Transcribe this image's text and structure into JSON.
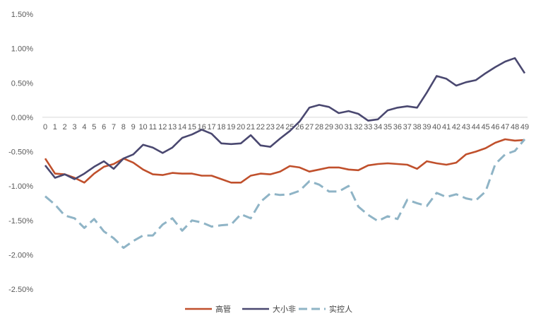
{
  "chart_data": {
    "type": "line",
    "title": "",
    "xlabel": "",
    "ylabel": "",
    "ylim": [
      -2.5,
      1.5
    ],
    "y_ticks": [
      "1.50%",
      "1.00%",
      "0.50%",
      "0.00%",
      "-0.50%",
      "-1.00%",
      "-1.50%",
      "-2.00%",
      "-2.50%"
    ],
    "y_tick_values": [
      1.5,
      1.0,
      0.5,
      0.0,
      -0.5,
      -1.0,
      -1.5,
      -2.0,
      -2.5
    ],
    "y_unit": "%",
    "grid": false,
    "legend_position": "bottom",
    "x": [
      "0",
      "1",
      "2",
      "3",
      "4",
      "5",
      "6",
      "7",
      "8",
      "9",
      "10",
      "11",
      "12",
      "13",
      "14",
      "15",
      "16",
      "17",
      "18",
      "19",
      "20",
      "21",
      "22",
      "23",
      "24",
      "25",
      "26",
      "27",
      "28",
      "29",
      "30",
      "31",
      "32",
      "33",
      "34",
      "35",
      "36",
      "37",
      "38",
      "39",
      "40",
      "41",
      "42",
      "43",
      "44",
      "45",
      "46",
      "47",
      "48",
      "49"
    ],
    "series": [
      {
        "name": "高管",
        "color": "#C0502C",
        "dash": "solid",
        "values": [
          -0.6,
          -0.82,
          -0.83,
          -0.88,
          -0.95,
          -0.82,
          -0.72,
          -0.68,
          -0.6,
          -0.66,
          -0.76,
          -0.83,
          -0.84,
          -0.81,
          -0.82,
          -0.82,
          -0.85,
          -0.85,
          -0.9,
          -0.95,
          -0.95,
          -0.85,
          -0.82,
          -0.83,
          -0.79,
          -0.71,
          -0.73,
          -0.79,
          -0.76,
          -0.73,
          -0.73,
          -0.76,
          -0.77,
          -0.7,
          -0.68,
          -0.67,
          -0.68,
          -0.69,
          -0.75,
          -0.64,
          -0.67,
          -0.69,
          -0.66,
          -0.54,
          -0.5,
          -0.45,
          -0.37,
          -0.32,
          -0.34,
          -0.33
        ]
      },
      {
        "name": "大小非",
        "color": "#4A4870",
        "dash": "solid",
        "values": [
          -0.7,
          -0.88,
          -0.83,
          -0.9,
          -0.82,
          -0.72,
          -0.64,
          -0.75,
          -0.6,
          -0.54,
          -0.4,
          -0.44,
          -0.52,
          -0.44,
          -0.3,
          -0.25,
          -0.18,
          -0.24,
          -0.38,
          -0.39,
          -0.38,
          -0.26,
          -0.41,
          -0.43,
          -0.31,
          -0.2,
          -0.06,
          0.14,
          0.18,
          0.15,
          0.06,
          0.09,
          0.05,
          -0.05,
          -0.03,
          0.1,
          0.14,
          0.16,
          0.14,
          0.36,
          0.6,
          0.56,
          0.46,
          0.51,
          0.54,
          0.64,
          0.73,
          0.81,
          0.86,
          0.64
        ]
      },
      {
        "name": "实控人",
        "color": "#8FB4C6",
        "dash": "dashed",
        "values": [
          -1.15,
          -1.27,
          -1.43,
          -1.47,
          -1.61,
          -1.48,
          -1.66,
          -1.76,
          -1.9,
          -1.8,
          -1.72,
          -1.72,
          -1.56,
          -1.47,
          -1.65,
          -1.5,
          -1.53,
          -1.59,
          -1.57,
          -1.56,
          -1.41,
          -1.47,
          -1.23,
          -1.11,
          -1.13,
          -1.12,
          -1.07,
          -0.93,
          -0.98,
          -1.08,
          -1.08,
          -1.0,
          -1.3,
          -1.42,
          -1.51,
          -1.44,
          -1.48,
          -1.2,
          -1.25,
          -1.29,
          -1.1,
          -1.16,
          -1.12,
          -1.18,
          -1.21,
          -1.08,
          -0.68,
          -0.54,
          -0.49,
          -0.32
        ]
      }
    ]
  }
}
